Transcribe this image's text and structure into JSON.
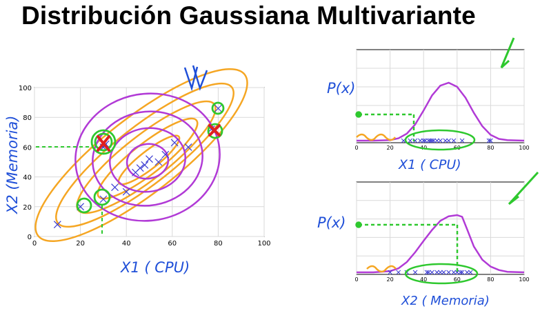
{
  "slide": {
    "title": "Distribución Gaussiana Multivariante"
  },
  "annotations": {
    "ink_color": "#1f4fd8",
    "green_ink": "#2ec82e",
    "orange_ink": "#f5a623",
    "purple_ink": "#b13ad6",
    "red_ink": "#e02020",
    "main_xlabel": "X1 ( CPU)",
    "main_ylabel": "X2 (Memoria)",
    "top_px": "P(x)",
    "top_xlabel": "X1 ( CPU)",
    "bottom_px": "P(x)",
    "bottom_xlabel": "X2 ( Memoria)"
  },
  "chart_data": [
    {
      "type": "scatter",
      "title": "",
      "xlabel": "",
      "ylabel": "",
      "xlim": [
        0,
        100
      ],
      "ylim": [
        0,
        100
      ],
      "xticks": [
        "0",
        "20",
        "40",
        "60",
        "80",
        "100"
      ],
      "yticks": [
        "0",
        "20",
        "40",
        "60",
        "80",
        "100"
      ],
      "grid": true,
      "marker_color": "#3b3bd1",
      "points": [
        {
          "x": 10,
          "y": 8
        },
        {
          "x": 20,
          "y": 20
        },
        {
          "x": 30,
          "y": 25
        },
        {
          "x": 35,
          "y": 33
        },
        {
          "x": 40,
          "y": 30
        },
        {
          "x": 44,
          "y": 43
        },
        {
          "x": 46,
          "y": 46
        },
        {
          "x": 48,
          "y": 48
        },
        {
          "x": 50,
          "y": 52
        },
        {
          "x": 54,
          "y": 50
        },
        {
          "x": 57,
          "y": 55
        },
        {
          "x": 61,
          "y": 63
        },
        {
          "x": 67,
          "y": 60
        },
        {
          "x": 30,
          "y": 60
        },
        {
          "x": 31,
          "y": 62
        },
        {
          "x": 77,
          "y": 72
        },
        {
          "x": 80,
          "y": 86
        }
      ]
    },
    {
      "type": "line",
      "title": "",
      "xlabel": "",
      "ylabel": "",
      "xlim": [
        0,
        100
      ],
      "xticks": [
        "0",
        "20",
        "40",
        "60",
        "80",
        "100"
      ],
      "grid": true,
      "line_color": "#b13ad6",
      "x": [
        0,
        10,
        20,
        25,
        30,
        35,
        40,
        45,
        50,
        55,
        60,
        65,
        70,
        75,
        80,
        85,
        90,
        100
      ],
      "y": [
        0.0,
        0.0,
        0.01,
        0.04,
        0.12,
        0.28,
        0.52,
        0.78,
        0.95,
        1.0,
        0.93,
        0.74,
        0.48,
        0.25,
        0.1,
        0.03,
        0.01,
        0.0
      ],
      "samples": [
        28,
        32,
        35,
        38,
        40,
        41,
        43,
        44,
        45,
        46,
        48,
        50,
        53,
        55,
        58,
        63,
        79,
        80
      ]
    },
    {
      "type": "line",
      "title": "",
      "xlabel": "",
      "ylabel": "",
      "xlim": [
        0,
        100
      ],
      "xticks": [
        "0",
        "20",
        "40",
        "60",
        "80",
        "100"
      ],
      "grid": true,
      "line_color": "#b13ad6",
      "x": [
        0,
        10,
        20,
        25,
        30,
        35,
        40,
        45,
        50,
        55,
        60,
        63,
        66,
        70,
        75,
        80,
        85,
        90,
        100
      ],
      "y": [
        0.0,
        0.0,
        0.02,
        0.07,
        0.18,
        0.35,
        0.55,
        0.74,
        0.9,
        0.98,
        1.0,
        0.97,
        0.75,
        0.45,
        0.22,
        0.1,
        0.04,
        0.01,
        0.0
      ],
      "samples": [
        20,
        25,
        30,
        35,
        42,
        43,
        45,
        48,
        50,
        52,
        55,
        58,
        60,
        62,
        63,
        66,
        68
      ]
    }
  ]
}
